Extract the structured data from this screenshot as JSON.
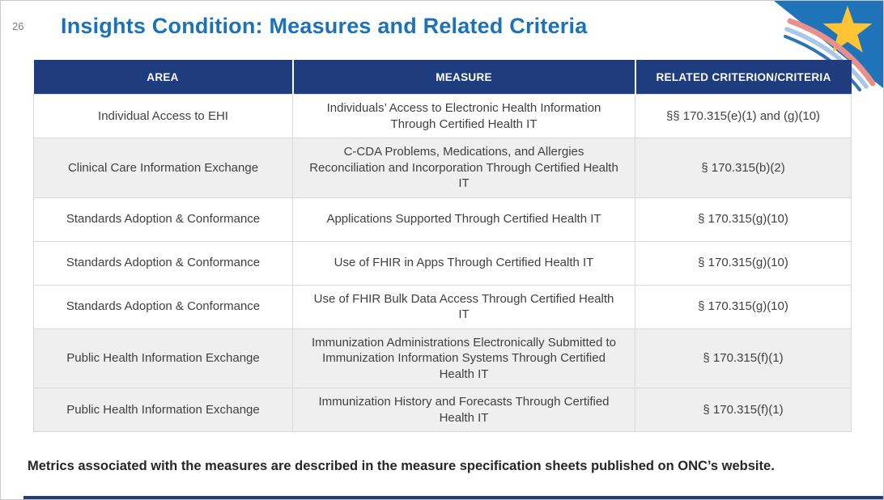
{
  "page": {
    "number": "26",
    "title": "Insights Condition: Measures and Related Criteria",
    "footer": "Metrics associated with the measures are described in the measure specification sheets published on ONC’s website."
  },
  "table": {
    "columns": [
      "AREA",
      "MEASURE",
      "RELATED CRITERION/CRITERIA"
    ],
    "rows": [
      {
        "area": "Individual Access to EHI",
        "measure": "Individuals’ Access to Electronic Health Information Through Certified Health IT",
        "criteria": "§§ 170.315(e)(1) and (g)(10)",
        "shaded": false
      },
      {
        "area": "Clinical Care Information Exchange",
        "measure": "C-CDA Problems, Medications, and Allergies Reconciliation and Incorporation Through Certified Health IT",
        "criteria": "§ 170.315(b)(2)",
        "shaded": true
      },
      {
        "area": "Standards Adoption & Conformance",
        "measure": "Applications Supported Through Certified Health IT",
        "criteria": "§ 170.315(g)(10)",
        "shaded": false
      },
      {
        "area": "Standards Adoption & Conformance",
        "measure": "Use of FHIR in Apps Through Certified Health IT",
        "criteria": "§ 170.315(g)(10)",
        "shaded": false
      },
      {
        "area": "Standards Adoption & Conformance",
        "measure": "Use of FHIR Bulk Data Access Through Certified Health IT",
        "criteria": "§ 170.315(g)(10)",
        "shaded": false
      },
      {
        "area": "Public Health Information Exchange",
        "measure": "Immunization Administrations Electronically Submitted to Immunization Information Systems Through Certified Health IT",
        "criteria": "§ 170.315(f)(1)",
        "shaded": true
      },
      {
        "area": "Public Health Information Exchange",
        "measure": "Immunization History and Forecasts Through Certified Health IT",
        "criteria": "§ 170.315(f)(1)",
        "shaded": true
      }
    ]
  },
  "decoration": {
    "corner_icon": "onc-star-swoosh-logo"
  },
  "colors": {
    "title_blue": "#1B72B8",
    "header_navy": "#1E3C7E",
    "row_shaded": "#EFEFEF",
    "border_gray": "#D9D9D9",
    "body_text": "#404040",
    "footer_text": "#262626",
    "corner_triangle_blue": "#1E73B9",
    "star_gold": "#FFC433",
    "swoosh_pink": "#E9908A",
    "swoosh_light_blue": "#A9C7E8",
    "swoosh_mid_blue": "#2E75B6"
  }
}
